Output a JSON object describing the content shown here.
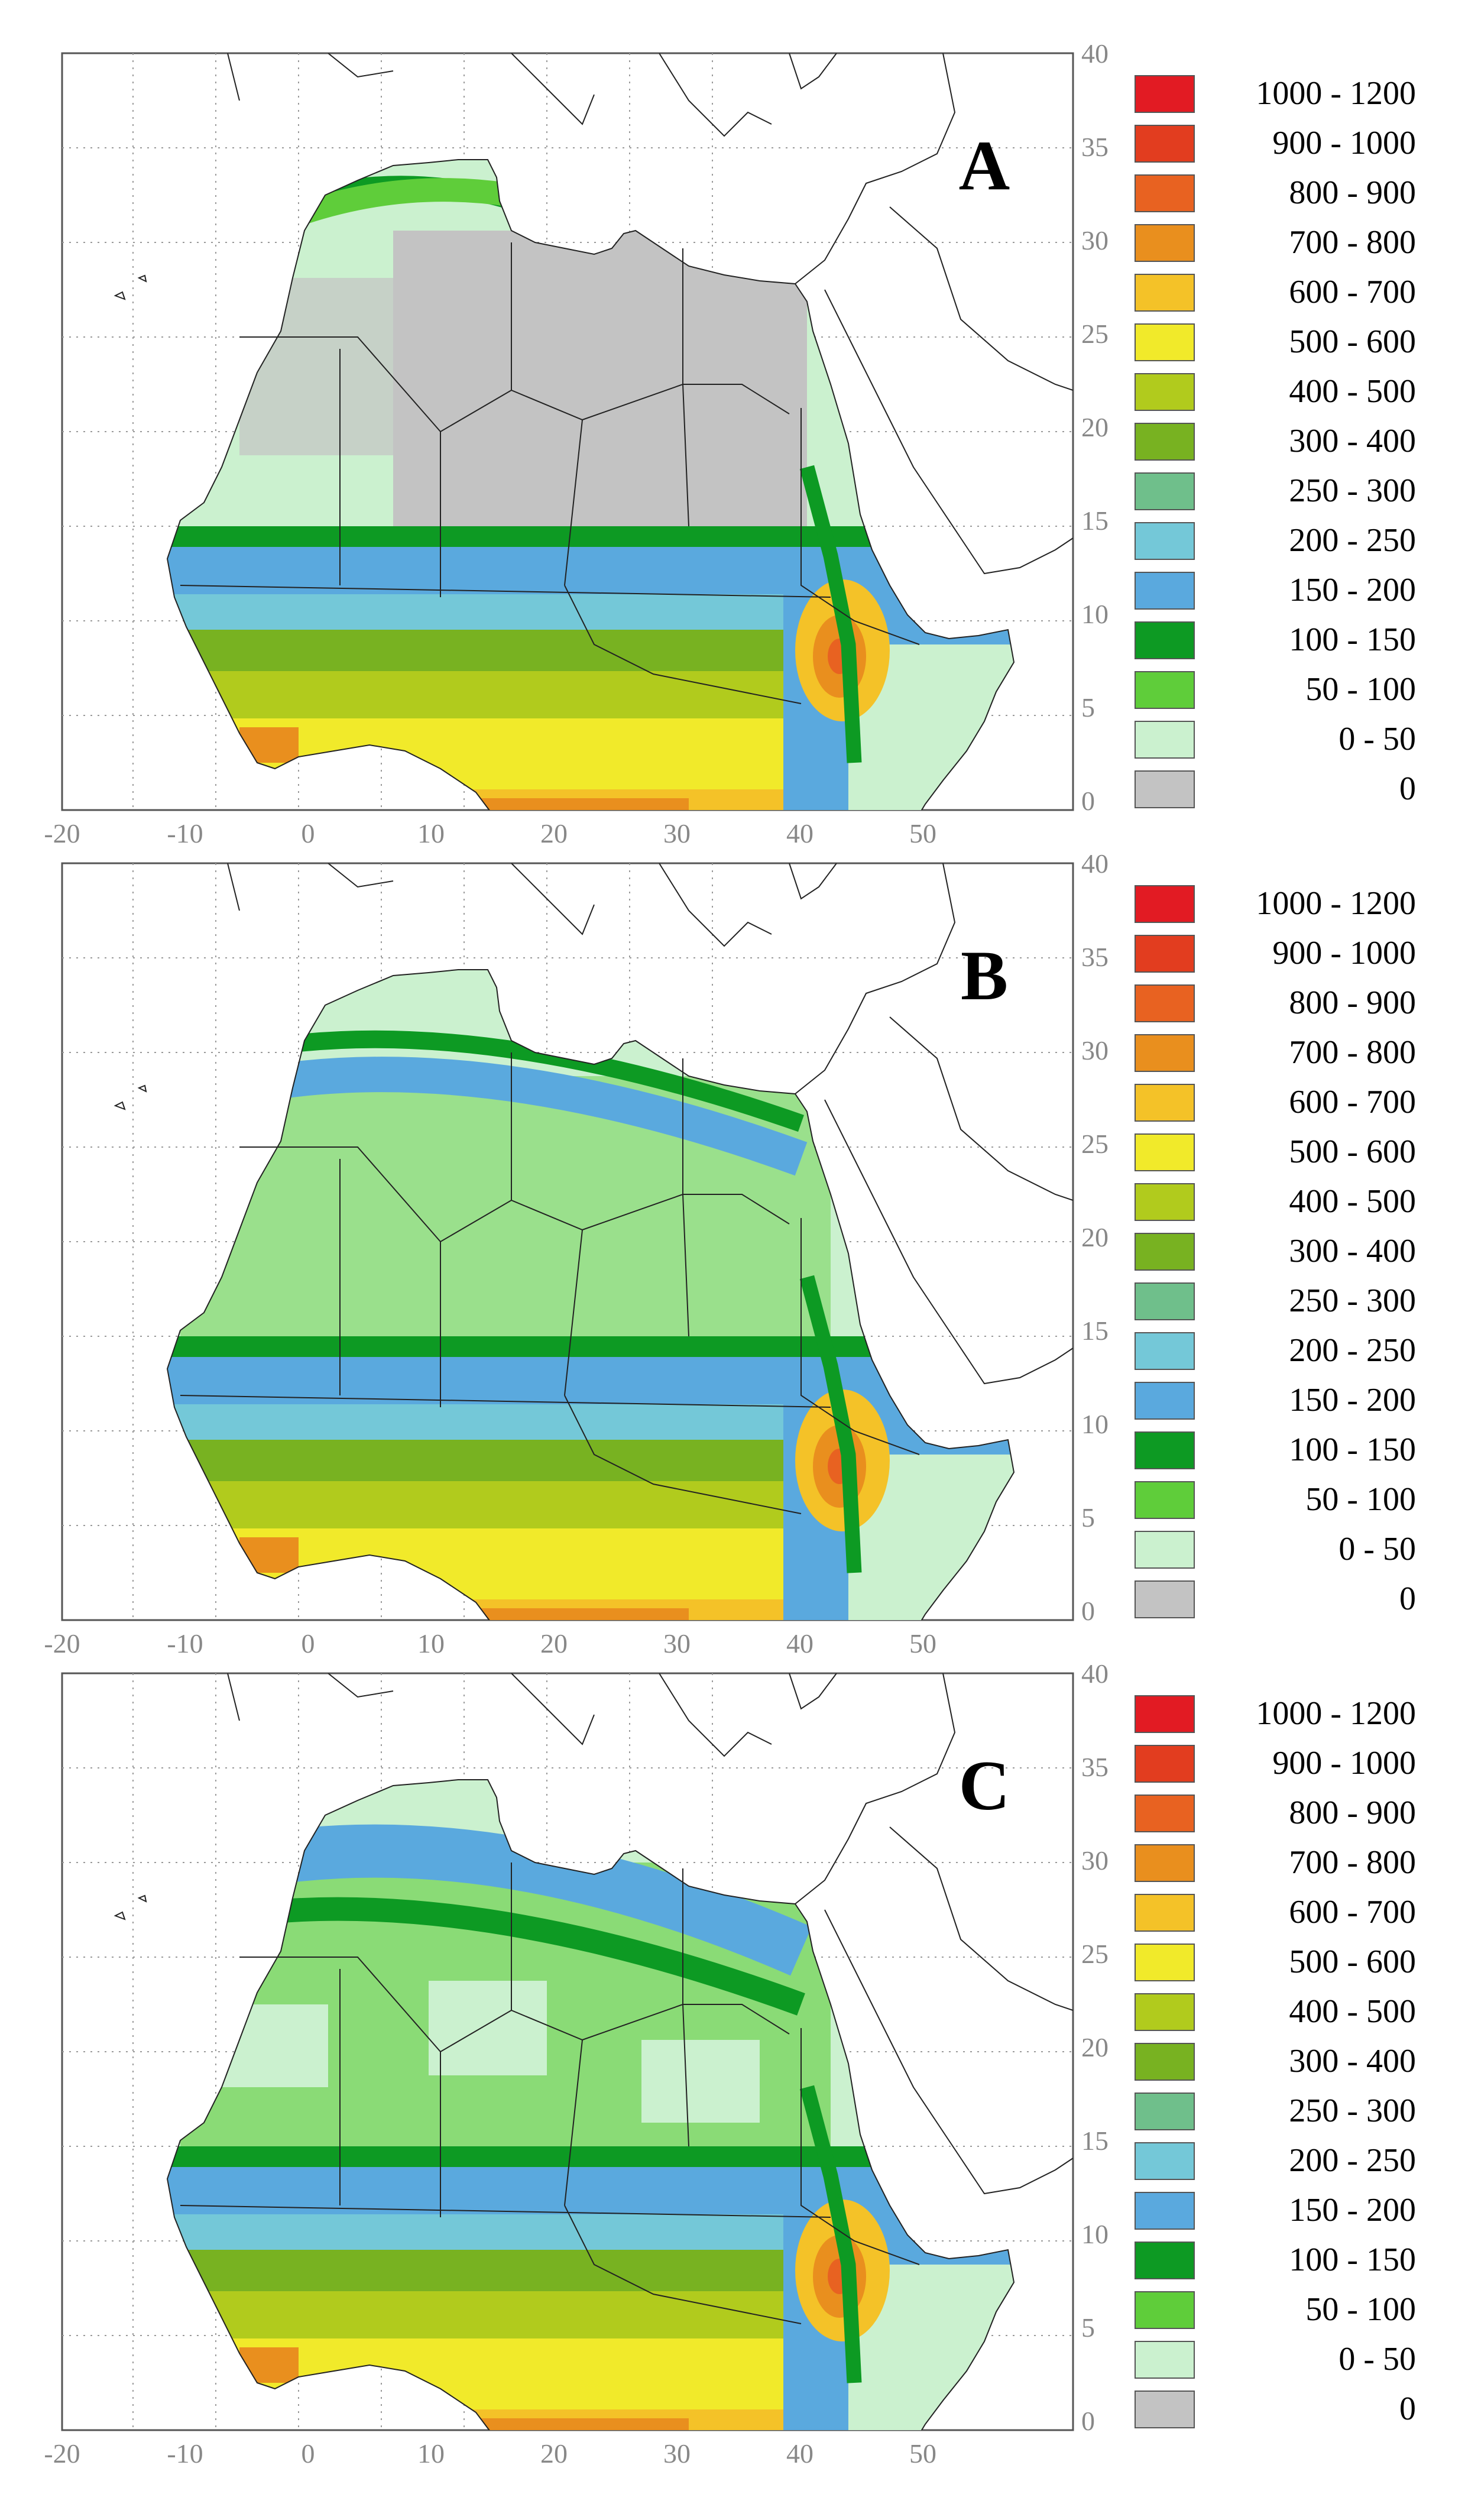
{
  "panels": [
    {
      "label": "A"
    },
    {
      "label": "B"
    },
    {
      "label": "C"
    }
  ],
  "axes": {
    "x_ticks": [
      "-20",
      "-10",
      "0",
      "10",
      "20",
      "30",
      "40",
      "50"
    ],
    "y_ticks": [
      "40",
      "35",
      "30",
      "25",
      "20",
      "15",
      "10",
      "5",
      "0"
    ],
    "grid": "dotted"
  },
  "legend": {
    "position": "right",
    "classes": [
      {
        "label": "1000 -  1200",
        "color": "#e21b23"
      },
      {
        "label": "900 -  1000",
        "color": "#e23d1f"
      },
      {
        "label": "800 -   900",
        "color": "#e86221"
      },
      {
        "label": "700 -   800",
        "color": "#e98f1e"
      },
      {
        "label": "600 -   700",
        "color": "#f4c228"
      },
      {
        "label": "500 -   600",
        "color": "#f1ea2a"
      },
      {
        "label": "400 -   500",
        "color": "#b1cb1d"
      },
      {
        "label": "300 -   400",
        "color": "#78b221"
      },
      {
        "label": "250 -   300",
        "color": "#6fbf8b"
      },
      {
        "label": "200 -   250",
        "color": "#74c8d8"
      },
      {
        "label": "150 -   200",
        "color": "#5aa9de"
      },
      {
        "label": "100 -   150",
        "color": "#0d9a23"
      },
      {
        "label": "50 -   100",
        "color": "#5fcd3a"
      },
      {
        "label": "0 -     50",
        "color": "#cbf1cf"
      },
      {
        "label": "0",
        "color": "#c3c3c3"
      }
    ]
  }
}
